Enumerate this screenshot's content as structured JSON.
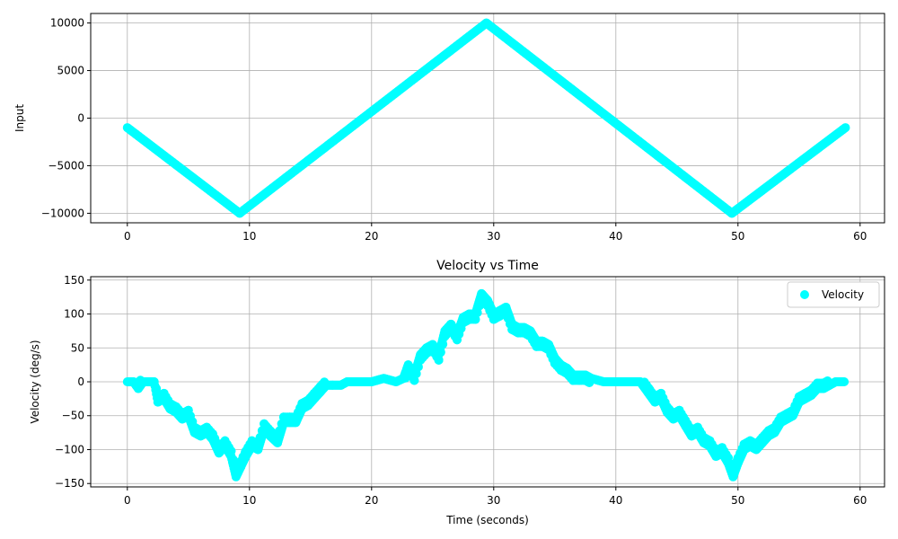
{
  "colors": {
    "marker": "#00ffff",
    "grid": "#b0b0b0",
    "axes": "#000000"
  },
  "chart_data": [
    {
      "type": "scatter",
      "title": "",
      "xlabel": "",
      "ylabel": "Input",
      "xlim": [
        -3,
        62
      ],
      "ylim": [
        -11000,
        11000
      ],
      "xticks": [
        0,
        10,
        20,
        30,
        40,
        50,
        60
      ],
      "yticks": [
        -10000,
        -5000,
        0,
        5000,
        10000
      ],
      "grid": true,
      "legend": null,
      "series": [
        {
          "name": "",
          "color": "#00ffff",
          "points": [
            [
              0,
              -1000
            ],
            [
              9.2,
              -10000
            ],
            [
              29.4,
              10000
            ],
            [
              49.5,
              -10000
            ],
            [
              58.8,
              -1000
            ]
          ]
        }
      ]
    },
    {
      "type": "scatter",
      "title": "Velocity vs Time",
      "xlabel": "Time (seconds)",
      "ylabel": "Velocity (deg/s)",
      "xlim": [
        -3,
        62
      ],
      "ylim": [
        -155,
        155
      ],
      "xticks": [
        0,
        10,
        20,
        30,
        40,
        50,
        60
      ],
      "yticks": [
        -150,
        -100,
        -50,
        0,
        50,
        100,
        150
      ],
      "grid": true,
      "legend": {
        "position": "upper right",
        "entries": [
          "Velocity"
        ]
      },
      "series": [
        {
          "name": "Velocity",
          "color": "#00ffff",
          "points": [
            [
              0.0,
              0
            ],
            [
              0.5,
              0
            ],
            [
              0.9,
              -10
            ],
            [
              1.3,
              0
            ],
            [
              1.8,
              0
            ],
            [
              2.2,
              0
            ],
            [
              2.5,
              -30
            ],
            [
              3.0,
              -25
            ],
            [
              3.5,
              -40
            ],
            [
              4.0,
              -45
            ],
            [
              4.5,
              -55
            ],
            [
              5.0,
              -50
            ],
            [
              5.5,
              -75
            ],
            [
              6.0,
              -80
            ],
            [
              6.5,
              -75
            ],
            [
              7.0,
              -85
            ],
            [
              7.5,
              -105
            ],
            [
              8.0,
              -95
            ],
            [
              8.5,
              -110
            ],
            [
              8.9,
              -140
            ],
            [
              9.3,
              -125
            ],
            [
              9.7,
              -110
            ],
            [
              10.2,
              -95
            ],
            [
              10.7,
              -100
            ],
            [
              11.2,
              -70
            ],
            [
              11.7,
              -80
            ],
            [
              12.3,
              -90
            ],
            [
              12.8,
              -60
            ],
            [
              13.3,
              -60
            ],
            [
              13.8,
              -60
            ],
            [
              14.3,
              -40
            ],
            [
              14.8,
              -35
            ],
            [
              15.3,
              -25
            ],
            [
              15.8,
              -15
            ],
            [
              16.3,
              -5
            ],
            [
              16.8,
              -5
            ],
            [
              17.5,
              -5
            ],
            [
              18.0,
              0
            ],
            [
              19.0,
              0
            ],
            [
              20.0,
              0
            ],
            [
              21.0,
              5
            ],
            [
              22.0,
              0
            ],
            [
              22.6,
              5
            ],
            [
              23.0,
              25
            ],
            [
              23.5,
              10
            ],
            [
              24.0,
              40
            ],
            [
              24.5,
              50
            ],
            [
              25.0,
              55
            ],
            [
              25.5,
              40
            ],
            [
              26.0,
              75
            ],
            [
              26.5,
              85
            ],
            [
              27.0,
              70
            ],
            [
              27.5,
              95
            ],
            [
              28.0,
              100
            ],
            [
              28.5,
              100
            ],
            [
              29.0,
              130
            ],
            [
              29.5,
              120
            ],
            [
              30.0,
              100
            ],
            [
              30.5,
              105
            ],
            [
              31.0,
              110
            ],
            [
              31.5,
              85
            ],
            [
              32.0,
              80
            ],
            [
              32.5,
              80
            ],
            [
              33.0,
              75
            ],
            [
              33.5,
              60
            ],
            [
              34.0,
              60
            ],
            [
              34.5,
              55
            ],
            [
              35.0,
              35
            ],
            [
              35.5,
              25
            ],
            [
              36.0,
              20
            ],
            [
              36.5,
              10
            ],
            [
              37.0,
              10
            ],
            [
              37.5,
              10
            ],
            [
              38.0,
              5
            ],
            [
              39.0,
              0
            ],
            [
              40.0,
              0
            ],
            [
              41.0,
              0
            ],
            [
              42.0,
              0
            ],
            [
              42.8,
              -20
            ],
            [
              43.2,
              -30
            ],
            [
              43.7,
              -25
            ],
            [
              44.2,
              -45
            ],
            [
              44.7,
              -55
            ],
            [
              45.2,
              -50
            ],
            [
              45.7,
              -65
            ],
            [
              46.2,
              -80
            ],
            [
              46.7,
              -75
            ],
            [
              47.2,
              -90
            ],
            [
              47.7,
              -95
            ],
            [
              48.2,
              -110
            ],
            [
              48.7,
              -105
            ],
            [
              49.2,
              -120
            ],
            [
              49.6,
              -140
            ],
            [
              50.0,
              -120
            ],
            [
              50.5,
              -100
            ],
            [
              51.0,
              -95
            ],
            [
              51.5,
              -100
            ],
            [
              52.0,
              -90
            ],
            [
              52.5,
              -80
            ],
            [
              53.0,
              -75
            ],
            [
              53.5,
              -60
            ],
            [
              54.0,
              -55
            ],
            [
              54.5,
              -50
            ],
            [
              55.0,
              -30
            ],
            [
              55.5,
              -25
            ],
            [
              56.0,
              -20
            ],
            [
              56.5,
              -10
            ],
            [
              57.0,
              -10
            ],
            [
              57.5,
              -5
            ],
            [
              58.0,
              0
            ],
            [
              58.7,
              0
            ]
          ]
        }
      ]
    }
  ]
}
